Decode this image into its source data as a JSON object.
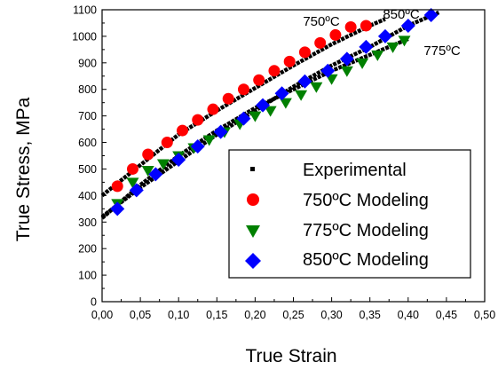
{
  "chart_data": {
    "type": "scatter",
    "xlabel": "True Strain",
    "ylabel": "True Stress, MPa",
    "xlim": [
      0.0,
      0.5
    ],
    "ylim": [
      0,
      1100
    ],
    "x_ticks": [
      "0,00",
      "0,05",
      "0,10",
      "0,15",
      "0,20",
      "0,25",
      "0,30",
      "0,35",
      "0,40",
      "0,45",
      "0,50"
    ],
    "y_ticks": [
      "0",
      "100",
      "200",
      "300",
      "400",
      "500",
      "600",
      "700",
      "800",
      "900",
      "1000",
      "1100"
    ],
    "legend_position": "bottom-right",
    "annotations": [
      "750ºC",
      "850ºC",
      "775ºC"
    ],
    "experimental": {
      "name": "Experimental",
      "color": "#000000",
      "marker": "square",
      "curves": [
        {
          "x": [
            0.0,
            0.05,
            0.1,
            0.15,
            0.2,
            0.25,
            0.3,
            0.35,
            0.37
          ],
          "y": [
            400,
            515,
            630,
            720,
            805,
            890,
            970,
            1040,
            1065
          ]
        },
        {
          "x": [
            0.0,
            0.05,
            0.1,
            0.15,
            0.2,
            0.25,
            0.3,
            0.35,
            0.4
          ],
          "y": [
            315,
            440,
            550,
            645,
            730,
            800,
            870,
            930,
            990
          ]
        },
        {
          "x": [
            0.0,
            0.05,
            0.1,
            0.15,
            0.2,
            0.25,
            0.3,
            0.35,
            0.4,
            0.44
          ],
          "y": [
            320,
            430,
            530,
            630,
            720,
            810,
            890,
            960,
            1040,
            1090
          ]
        }
      ]
    },
    "series": [
      {
        "name": "750ºC Modeling",
        "color": "#ff0000",
        "marker": "circle",
        "x": [
          0.02,
          0.04,
          0.06,
          0.085,
          0.105,
          0.125,
          0.145,
          0.165,
          0.185,
          0.205,
          0.225,
          0.245,
          0.265,
          0.285,
          0.305,
          0.325,
          0.345
        ],
        "y": [
          435,
          500,
          555,
          600,
          645,
          685,
          725,
          765,
          800,
          835,
          870,
          905,
          940,
          975,
          1005,
          1035,
          1040
        ]
      },
      {
        "name": "775ºC Modeling",
        "color": "#008000",
        "marker": "triangle-down",
        "x": [
          0.02,
          0.04,
          0.06,
          0.08,
          0.1,
          0.12,
          0.14,
          0.16,
          0.18,
          0.2,
          0.22,
          0.24,
          0.26,
          0.28,
          0.3,
          0.32,
          0.34,
          0.36,
          0.38,
          0.395
        ],
        "y": [
          370,
          450,
          495,
          520,
          550,
          580,
          610,
          640,
          670,
          700,
          720,
          750,
          780,
          810,
          840,
          870,
          900,
          930,
          960,
          985
        ]
      },
      {
        "name": "850ºC Modeling",
        "color": "#0000ff",
        "marker": "diamond",
        "x": [
          0.02,
          0.045,
          0.07,
          0.1,
          0.125,
          0.155,
          0.185,
          0.21,
          0.235,
          0.265,
          0.295,
          0.32,
          0.345,
          0.37,
          0.4,
          0.43
        ],
        "y": [
          350,
          420,
          480,
          535,
          585,
          640,
          690,
          740,
          785,
          830,
          870,
          915,
          960,
          1000,
          1040,
          1080
        ]
      }
    ]
  }
}
